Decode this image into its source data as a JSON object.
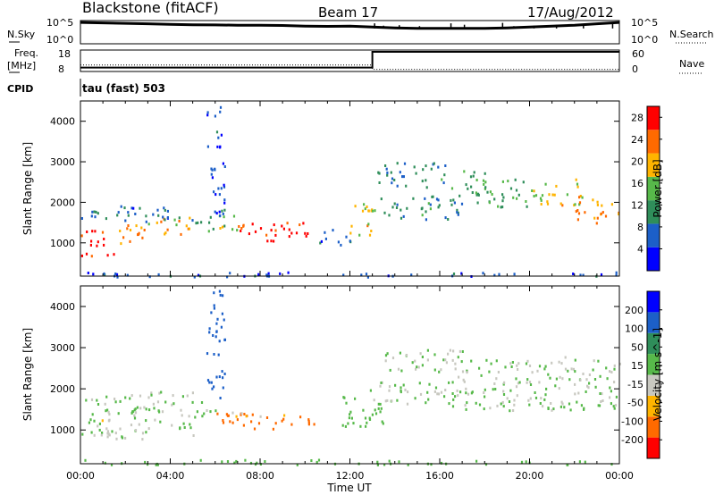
{
  "header": {
    "station": "Blackstone (fitACF)",
    "beam": "Beam 17",
    "date": "17/Aug/2012"
  },
  "sky_panel": {
    "left_label": "N.Sky",
    "right_label": "N.Search",
    "left_ticks": [
      "10^5",
      "10^0"
    ],
    "right_ticks": [
      "10^5",
      "10^0"
    ],
    "y_scale": "log"
  },
  "freq_panel": {
    "left_label_1": "Freq.",
    "left_label_2": "[MHz]",
    "right_label": "Nave",
    "left_ticks": [
      "18",
      "8"
    ],
    "right_ticks": [
      "60",
      "0"
    ]
  },
  "cpid": {
    "label": "CPID",
    "text": "tau (fast) 503"
  },
  "chart_data": [
    {
      "type": "line",
      "panel": "N.Sky / N.Search",
      "x_unit": "hour UT",
      "xlim": [
        0,
        24
      ],
      "series": [
        {
          "name": "N.Sky",
          "style": "solid",
          "points": [
            [
              0,
              4.6
            ],
            [
              1,
              4.5
            ],
            [
              2,
              4.4
            ],
            [
              3,
              4.3
            ],
            [
              4,
              4.2
            ],
            [
              5,
              4.1
            ],
            [
              6,
              4.05
            ],
            [
              7,
              4.0
            ],
            [
              8,
              4.0
            ],
            [
              9,
              3.95
            ],
            [
              10,
              3.8
            ],
            [
              11,
              3.75
            ],
            [
              12,
              3.8
            ],
            [
              13,
              3.6
            ],
            [
              14,
              3.4
            ],
            [
              15,
              3.3
            ],
            [
              16,
              3.3
            ],
            [
              17,
              3.3
            ],
            [
              18,
              3.3
            ],
            [
              19,
              3.4
            ],
            [
              20,
              3.6
            ],
            [
              21,
              3.8
            ],
            [
              22,
              4.0
            ],
            [
              23,
              4.3
            ],
            [
              24,
              4.6
            ]
          ]
        },
        {
          "name": "N.Search",
          "style": "spikes",
          "points": [
            [
              13.1,
              4.4
            ],
            [
              13.5,
              3.9
            ],
            [
              14.2,
              4.0
            ],
            [
              15.1,
              3.8
            ],
            [
              16.5,
              4.4
            ],
            [
              17.1,
              4.1
            ],
            [
              18.8,
              4.5
            ],
            [
              19.3,
              3.8
            ],
            [
              20.2,
              3.9
            ],
            [
              21.2,
              4.1
            ],
            [
              22.4,
              4.1
            ],
            [
              23.7,
              4.5
            ]
          ]
        }
      ]
    },
    {
      "type": "line",
      "panel": "Freq. / Nave",
      "x_unit": "hour UT",
      "xlim": [
        0,
        24
      ],
      "series": [
        {
          "name": "Freq.",
          "style": "solid",
          "unit": "MHz",
          "points": [
            [
              0,
              8.2
            ],
            [
              13,
              8.2
            ],
            [
              13,
              17
            ],
            [
              24,
              17
            ]
          ]
        },
        {
          "name": "Nave",
          "style": "dotted",
          "points": [
            [
              0,
              18
            ],
            [
              13,
              18
            ],
            [
              13,
              6
            ],
            [
              24,
              6
            ]
          ]
        }
      ]
    },
    {
      "type": "heatmap",
      "panel": "Power",
      "xlabel": "Time UT",
      "ylabel": "Slant Range [km]",
      "xlim": [
        0,
        24
      ],
      "ylim": [
        180,
        4500
      ],
      "x_ticks": [
        "00:00",
        "04:00",
        "08:00",
        "12:00",
        "16:00",
        "20:00",
        "00:00"
      ],
      "y_ticks": [
        1000,
        2000,
        3000,
        4000
      ],
      "colorbar": {
        "label": "Power [dB]",
        "ticks": [
          4,
          8,
          12,
          16,
          20,
          24,
          28
        ],
        "range": [
          0,
          30
        ],
        "colors": [
          "#0000ff",
          "#1c5fc8",
          "#2f8e5a",
          "#57b94a",
          "#ffb400",
          "#ff6a00",
          "#ff0000"
        ]
      },
      "regions": [
        {
          "t": [
            0.0,
            1.5
          ],
          "r": [
            700,
            1350
          ],
          "level": 26
        },
        {
          "t": [
            1.5,
            3.0
          ],
          "r": [
            950,
            1500
          ],
          "level": 22
        },
        {
          "t": [
            3.0,
            5.0
          ],
          "r": [
            1200,
            1650
          ],
          "level": 20
        },
        {
          "t": [
            0.0,
            5.0
          ],
          "r": [
            1550,
            1950
          ],
          "level": 8
        },
        {
          "t": [
            5.0,
            6.0
          ],
          "r": [
            1300,
            1700
          ],
          "level": 12
        },
        {
          "t": [
            6.0,
            7.0
          ],
          "r": [
            1300,
            1750
          ],
          "level": 16
        },
        {
          "t": [
            7.0,
            10.5
          ],
          "r": [
            1050,
            1550
          ],
          "level": 27
        },
        {
          "t": [
            5.6,
            6.4
          ],
          "r": [
            1700,
            4400
          ],
          "level": 5
        },
        {
          "t": [
            10.5,
            12.0
          ],
          "r": [
            950,
            1350
          ],
          "level": 6
        },
        {
          "t": [
            11.8,
            13.1
          ],
          "r": [
            1200,
            2000
          ],
          "level": 18
        },
        {
          "t": [
            13.0,
            17.0
          ],
          "r": [
            1600,
            2200
          ],
          "level": 10
        },
        {
          "t": [
            13.2,
            16.5
          ],
          "r": [
            2400,
            3000
          ],
          "level": 9
        },
        {
          "t": [
            16.5,
            18.0
          ],
          "r": [
            2200,
            2800
          ],
          "level": 11
        },
        {
          "t": [
            17.5,
            20.0
          ],
          "r": [
            1900,
            2600
          ],
          "level": 13
        },
        {
          "t": [
            20.0,
            22.5
          ],
          "r": [
            1950,
            2600
          ],
          "level": 18
        },
        {
          "t": [
            22.0,
            24.0
          ],
          "r": [
            1500,
            2100
          ],
          "level": 22
        },
        {
          "t": [
            0.0,
            24.0
          ],
          "r": [
            180,
            300
          ],
          "level": 6
        }
      ]
    },
    {
      "type": "heatmap",
      "panel": "Velocity",
      "xlabel": "Time UT",
      "ylabel": "Slant Range [km]",
      "xlim": [
        0,
        24
      ],
      "ylim": [
        180,
        4500
      ],
      "x_ticks": [
        "00:00",
        "04:00",
        "08:00",
        "12:00",
        "16:00",
        "20:00",
        "00:00"
      ],
      "y_ticks": [
        1000,
        2000,
        3000,
        4000
      ],
      "colorbar": {
        "label": "Velocity [m s^-1]",
        "ticks": [
          "200",
          "100",
          "50",
          "15",
          "-15",
          "-50",
          "-100",
          "-200"
        ],
        "range": [
          -250,
          250
        ],
        "colors": [
          "#ff0000",
          "#ff6a00",
          "#ffb400",
          "#c8c8c0",
          "#57b94a",
          "#2f8e5a",
          "#1c5fc8",
          "#0000ff"
        ]
      },
      "regions": [
        {
          "t": [
            0.0,
            5.0
          ],
          "r": [
            800,
            1950
          ],
          "level": 0
        },
        {
          "t": [
            0.8,
            1.4
          ],
          "r": [
            900,
            1300
          ],
          "level": -60
        },
        {
          "t": [
            5.0,
            6.0
          ],
          "r": [
            1250,
            1700
          ],
          "level": 0
        },
        {
          "t": [
            5.6,
            6.4
          ],
          "r": [
            1700,
            4400
          ],
          "level": 150
        },
        {
          "t": [
            6.0,
            10.5
          ],
          "r": [
            1050,
            1450
          ],
          "level": -150
        },
        {
          "t": [
            6.5,
            10.0
          ],
          "r": [
            1350,
            1450
          ],
          "level": -60
        },
        {
          "t": [
            11.5,
            13.5
          ],
          "r": [
            1100,
            2000
          ],
          "level": 40
        },
        {
          "t": [
            13.0,
            17.0
          ],
          "r": [
            1600,
            2200
          ],
          "level": 0
        },
        {
          "t": [
            13.5,
            17.0
          ],
          "r": [
            2400,
            3000
          ],
          "level": 0
        },
        {
          "t": [
            16.5,
            24.0
          ],
          "r": [
            1500,
            2800
          ],
          "level": 0
        },
        {
          "t": [
            0.0,
            24.0
          ],
          "r": [
            180,
            300
          ],
          "level": 40
        }
      ]
    }
  ]
}
